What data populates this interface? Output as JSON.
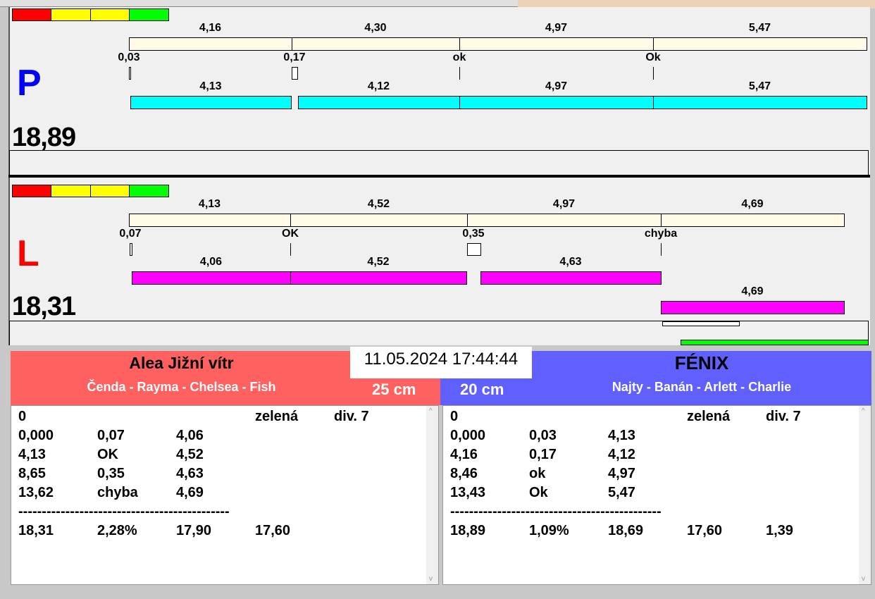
{
  "colors": {
    "fill_top": "#fffbe6",
    "P_bar": "#00ffff",
    "L_bar": "#ff00ff",
    "red_header": "#ff6060",
    "blue_header": "#6060ff",
    "scale": [
      "#ff0000",
      "#ffff00",
      "#ffff00",
      "#00ff00"
    ]
  },
  "P": {
    "letter": "P",
    "total": "18,89",
    "top": [
      "4,16",
      "4,30",
      "4,97",
      "5,47"
    ],
    "marks": [
      "0,03",
      "0,17",
      "ok",
      "Ok"
    ],
    "bottom": [
      "4,13",
      "4,12",
      "4,97",
      "5,47"
    ]
  },
  "L": {
    "letter": "L",
    "total": "18,31",
    "top": [
      "4,13",
      "4,52",
      "4,97",
      "4,69"
    ],
    "marks": [
      "0,07",
      "OK",
      "0,35",
      "chyba"
    ],
    "bottom": [
      "4,06",
      "4,52",
      "4,63",
      "4,69"
    ]
  },
  "datetime": "11.05.2024 17:44:44",
  "left": {
    "team": "Alea Jižní vítr",
    "members": "Čenda - Rayma - Chelsea - Fish",
    "height": "25 cm",
    "rows": [
      [
        "0",
        "",
        "",
        "zelená",
        "div. 7"
      ],
      [
        "0,000",
        "0,07",
        "4,06",
        "",
        ""
      ],
      [
        "4,13",
        "OK",
        "4,52",
        "",
        ""
      ],
      [
        "8,65",
        "0,35",
        "4,63",
        "",
        ""
      ],
      [
        "13,62",
        "chyba",
        "4,69",
        "",
        ""
      ]
    ],
    "separator": "---------------------------------------------",
    "summary": [
      "18,31",
      "2,28%",
      "17,90",
      "17,60",
      ""
    ]
  },
  "right": {
    "team": "FÉNIX",
    "members": "Najty - Banán - Arlett - Charlie",
    "height": "20 cm",
    "rows": [
      [
        "0",
        "",
        "",
        "zelená",
        "div. 7"
      ],
      [
        "0,000",
        "0,03",
        "4,13",
        "",
        ""
      ],
      [
        "4,16",
        "0,17",
        "4,12",
        "",
        ""
      ],
      [
        "8,46",
        "ok",
        "4,97",
        "",
        ""
      ],
      [
        "13,43",
        "Ok",
        "5,47",
        "",
        ""
      ]
    ],
    "separator": "---------------------------------------------",
    "summary": [
      "18,89",
      "1,09%",
      "18,69",
      "17,60",
      "1,39"
    ]
  }
}
